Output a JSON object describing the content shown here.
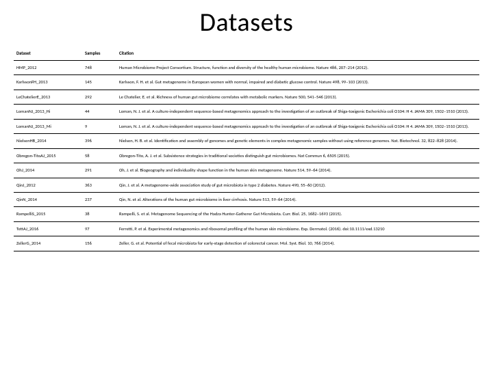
{
  "title": "Datasets",
  "table": {
    "columns": [
      "Dataset",
      "Samples",
      "Citation"
    ],
    "rows": [
      [
        "HMP_2012",
        "748",
        "Human Microbiome Project Consortium. Structure, function and diversity of the healthy human microbiome. Nature 486, 207–214 (2012)."
      ],
      [
        "KarlssonFH_2013",
        "145",
        "Karlsson, F. H. et al. Gut metagenome in European women with normal, impaired and diabetic glucose control. Nature 498, 99–103 (2013)."
      ],
      [
        "LeChatelierE_2013",
        "292",
        "Le Chatelier, E. et al. Richness of human gut microbiome correlates with metabolic markers. Nature 500, 541–546 (2013)."
      ],
      [
        "LomanNJ_2013_Hi",
        "44",
        "Loman, N. J. et al. A culture-independent sequence-based metagenomics approach to the investigation of an outbreak of Shiga-toxigenic Escherichia coli O104: H 4. JAMA 309, 1502–1510 (2013)."
      ],
      [
        "LomanNJ_2013_Mi",
        "9",
        "Loman, N. J. et al. A culture-independent sequence-based metagenomics approach to the investigation of an outbreak of Shiga-toxigenic Escherichia coli O104: H 4. JAMA 309, 1502–1510 (2013)."
      ],
      [
        "NielsenHB_2014",
        "396",
        "Nielsen, H. B. et al. Identification and assembly of genomes and genetic elements in complex metagenomic samples without using reference genomes. Nat. Biotechnol. 32, 822–828 (2014)."
      ],
      [
        "Obregon-TitoAJ_2015",
        "58",
        "Obregon-Tito, A. J. et al. Subsistence strategies in traditional societies distinguish gut microbiomes. Nat Commun 6, 6505 (2015)."
      ],
      [
        "OhJ_2014",
        "291",
        "Oh, J. et al. Biogeography and individuality shape function in the human skin metagenome. Nature 514, 59–64 (2014)."
      ],
      [
        "QinJ_2012",
        "363",
        "Qin, J. et al. A metagenome-wide association study of gut microbiota in type 2 diabetes. Nature 490, 55–60 (2012)."
      ],
      [
        "QinN_2014",
        "237",
        "Qin, N. et al. Alterations of the human gut microbiome in liver cirrhosis. Nature 513, 59–64 (2014)."
      ],
      [
        "RampelliS_2015",
        "38",
        "Rampelli, S. et al. Metagenome Sequencing of the Hadza Hunter-Gatherer Gut Microbiota. Curr. Biol. 25, 1682–1693 (2015)."
      ],
      [
        "TettAJ_2016",
        "97",
        "Ferretti, P. et al. Experimental metagenomics and ribosomal profiling of the human skin microbiome. Exp. Dermatol. (2016). doi:10.1111/exd.13210"
      ],
      [
        "ZellerG_2014",
        "156",
        "Zeller, G. et al. Potential of fecal microbiota for early-stage detection of colorectal cancer. Mol. Syst. Biol. 10, 766 (2014)."
      ]
    ]
  }
}
